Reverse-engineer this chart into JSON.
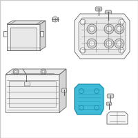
{
  "background_color": "#ffffff",
  "border_color": "#cccccc",
  "line_color": "#606060",
  "highlight_color": "#35b8d5",
  "highlight_edge": "#1a90b0",
  "face_light": "#f5f5f5",
  "face_mid": "#e8e8e8",
  "face_dark": "#d5d5d5",
  "screw_face": "#d8d8d8",
  "figsize": [
    2.0,
    2.0
  ],
  "dpi": 100
}
